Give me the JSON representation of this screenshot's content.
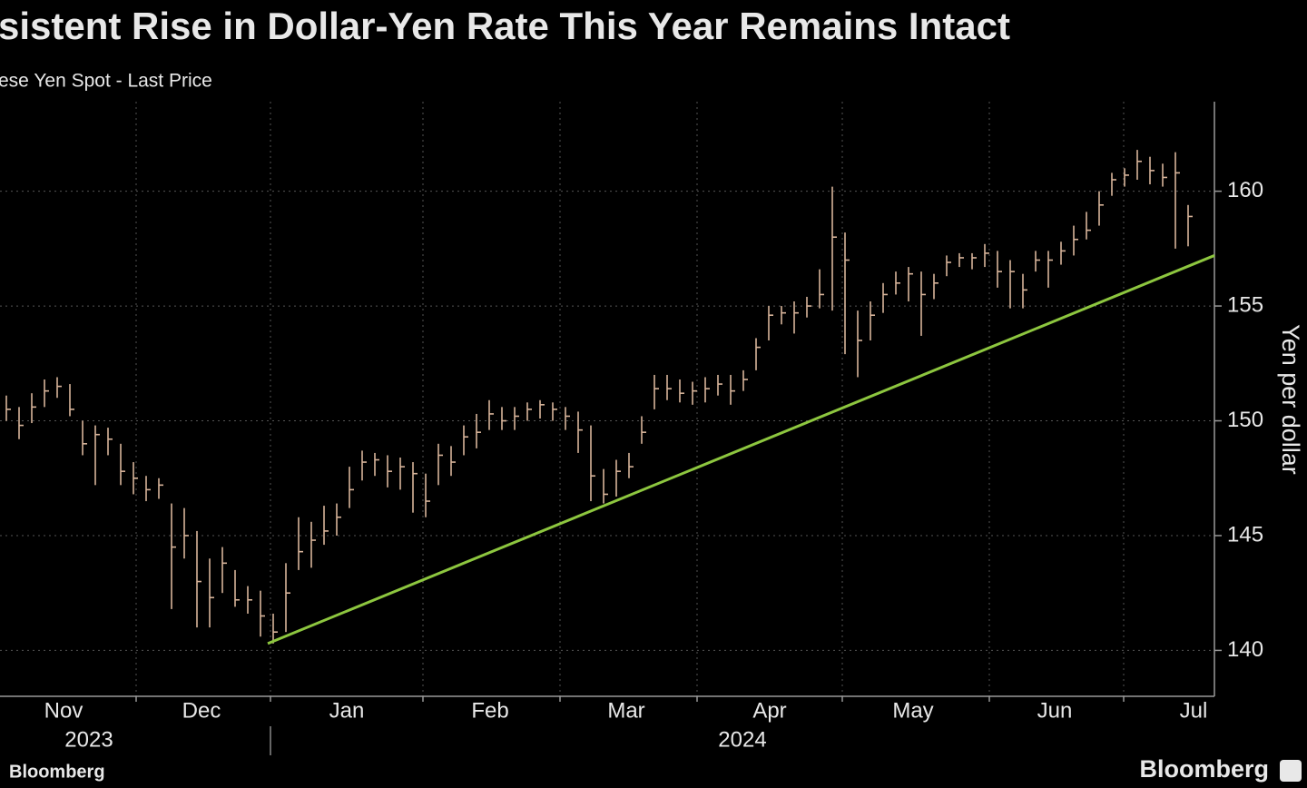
{
  "chart_data": {
    "type": "ohlc",
    "title": "sistent Rise in Dollar-Yen Rate This Year Remains Intact",
    "subtitle": "ese Yen Spot - Last Price",
    "y_label": "Yen per dollar",
    "color": "#d8b49a",
    "high": [
      151.1,
      150.6,
      151.2,
      151.8,
      151.9,
      151.6,
      150.0,
      149.8,
      149.7,
      149.0,
      148.2,
      147.6,
      147.5,
      146.4,
      146.2,
      145.2,
      144.0,
      144.5,
      143.5,
      142.8,
      142.6,
      141.6,
      143.8,
      145.8,
      145.6,
      146.3,
      146.4,
      148.0,
      148.7,
      148.6,
      148.5,
      148.4,
      148.2,
      147.7,
      149.0,
      148.9,
      149.8,
      150.3,
      150.9,
      150.6,
      150.6,
      150.8,
      150.9,
      150.8,
      150.6,
      150.4,
      149.8,
      147.9,
      148.3,
      148.6,
      150.2,
      152.0,
      152.0,
      151.8,
      151.7,
      151.9,
      152.0,
      152.0,
      152.2,
      153.6,
      155.0,
      155.0,
      155.2,
      155.4,
      156.6,
      160.2,
      158.2,
      154.8,
      155.2,
      156.0,
      156.5,
      156.7,
      156.5,
      156.4,
      157.2,
      157.3,
      157.3,
      157.7,
      157.4,
      157.0,
      156.4,
      157.4,
      157.4,
      157.8,
      158.5,
      159.1,
      160.0,
      160.8,
      161.0,
      161.8,
      161.5,
      161.2,
      161.7,
      159.4
    ],
    "low": [
      150.0,
      149.2,
      149.9,
      150.6,
      151.0,
      150.2,
      148.5,
      147.2,
      148.5,
      147.2,
      146.8,
      146.5,
      146.6,
      141.8,
      144.0,
      141.0,
      141.0,
      142.5,
      141.9,
      141.6,
      140.6,
      140.3,
      140.8,
      143.5,
      143.6,
      144.6,
      145.0,
      146.2,
      147.4,
      147.6,
      147.1,
      147.0,
      146.0,
      145.8,
      147.2,
      147.6,
      148.5,
      148.8,
      149.6,
      149.6,
      149.6,
      150.0,
      150.1,
      150.0,
      149.6,
      148.6,
      146.5,
      146.4,
      146.7,
      147.5,
      149.0,
      150.5,
      150.9,
      150.8,
      150.7,
      150.8,
      151.1,
      150.7,
      151.3,
      152.2,
      153.5,
      154.2,
      153.8,
      154.5,
      154.9,
      154.8,
      152.9,
      151.9,
      153.5,
      154.7,
      155.5,
      155.2,
      153.7,
      155.3,
      156.3,
      156.7,
      156.6,
      156.7,
      155.8,
      154.9,
      154.9,
      156.5,
      155.8,
      156.8,
      157.2,
      157.9,
      158.5,
      159.8,
      160.2,
      160.5,
      160.3,
      160.2,
      157.5,
      157.6
    ],
    "close": [
      150.5,
      149.8,
      150.6,
      151.3,
      151.5,
      150.5,
      149.0,
      149.4,
      149.2,
      147.8,
      147.5,
      147.0,
      147.2,
      144.5,
      145.0,
      143.0,
      142.3,
      143.8,
      142.2,
      142.2,
      141.5,
      140.8,
      142.5,
      144.3,
      144.8,
      145.2,
      145.8,
      147.0,
      148.2,
      148.3,
      147.8,
      148.0,
      147.7,
      146.5,
      148.5,
      148.2,
      149.3,
      149.5,
      150.3,
      150.0,
      150.2,
      150.5,
      150.7,
      150.5,
      150.2,
      149.6,
      147.6,
      146.8,
      147.8,
      148.0,
      149.5,
      151.4,
      151.4,
      151.2,
      151.3,
      151.4,
      151.6,
      151.3,
      151.8,
      153.2,
      154.6,
      154.7,
      154.7,
      155.0,
      155.5,
      158.0,
      157.0,
      153.5,
      154.6,
      155.5,
      156.0,
      156.4,
      155.5,
      156.0,
      156.9,
      157.1,
      157.1,
      157.3,
      156.5,
      156.5,
      155.7,
      157.0,
      157.0,
      157.4,
      157.9,
      158.3,
      159.4,
      160.5,
      160.7,
      161.3,
      160.9,
      160.6,
      160.8,
      158.9
    ],
    "trendline": {
      "color": "#8dc63f",
      "values": [
        140.3,
        157.2
      ]
    },
    "ylim": [
      138,
      163.9
    ],
    "yticks": [
      140,
      145,
      150,
      155,
      160
    ],
    "grid": true,
    "months": [
      "Nov",
      "Dec",
      "Jan",
      "Feb",
      "Mar",
      "Apr",
      "May",
      "Jun",
      "Jul"
    ],
    "years": [
      "2023",
      "2024"
    ]
  },
  "footer": {
    "left": "Bloomberg",
    "right": "Bloomberg"
  }
}
